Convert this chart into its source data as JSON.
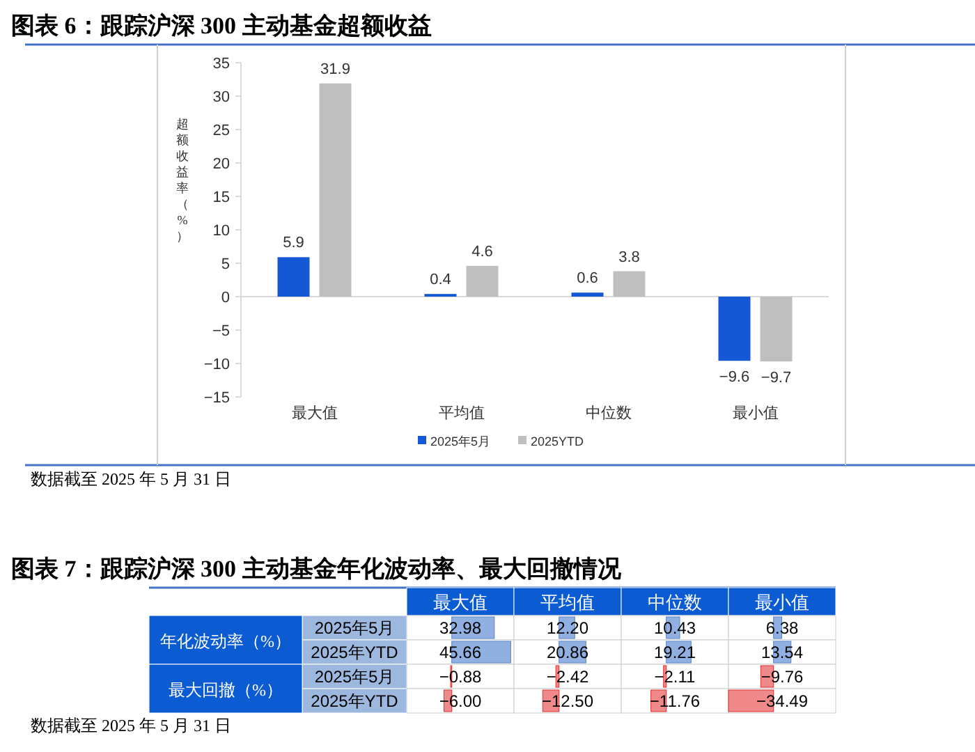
{
  "chart_data": [
    {
      "type": "bar",
      "title": "图表 6：跟踪沪深 300 主动基金超额收益",
      "ylabel": "超额收益率（%）",
      "categories": [
        "最大值",
        "平均值",
        "中位数",
        "最小值"
      ],
      "series": [
        {
          "name": "2025年5月",
          "color": "#1458d6",
          "values": [
            5.9,
            0.4,
            0.6,
            -9.6
          ]
        },
        {
          "name": "2025YTD",
          "color": "#bfbfbf",
          "values": [
            31.9,
            4.6,
            3.8,
            -9.7
          ]
        }
      ],
      "ylim": [
        -15,
        35
      ],
      "yticks": [
        -15,
        -10,
        -5,
        0,
        5,
        10,
        15,
        20,
        25,
        30,
        35
      ],
      "data_labels": true,
      "legend": "bottom",
      "annotations": [
        "数据截至 2025 年 5 月 31 日"
      ]
    },
    {
      "type": "heatmap",
      "title": "图表 7：跟踪沪深 300 主动基金年化波动率、最大回撤情况",
      "categories": [
        "最大值",
        "平均值",
        "中位数",
        "最小值"
      ],
      "y_categories": [
        "2025年5月",
        "2025年YTD",
        "2025年5月",
        "2025年YTD"
      ],
      "cells": [
        [
          32.98,
          12.2,
          10.43,
          6.38
        ],
        [
          45.66,
          20.86,
          19.21,
          13.54
        ],
        [
          -0.88,
          -2.42,
          -2.11,
          -9.76
        ],
        [
          -6.0,
          -12.5,
          -11.76,
          -34.49
        ]
      ],
      "cell_labels": [
        [
          "32.98",
          "12.20",
          "10.43",
          "6.38"
        ],
        [
          "45.66",
          "20.86",
          "19.21",
          "13.54"
        ],
        [
          "−0.88",
          "−2.42",
          "−2.11",
          "−9.76"
        ],
        [
          "−6.00",
          "−12.50",
          "−11.76",
          "−34.49"
        ]
      ],
      "annotations": [
        "年化波动率（%）",
        "最大回撤（%）",
        "数据截至 2025 年 5 月 31 日"
      ]
    }
  ]
}
